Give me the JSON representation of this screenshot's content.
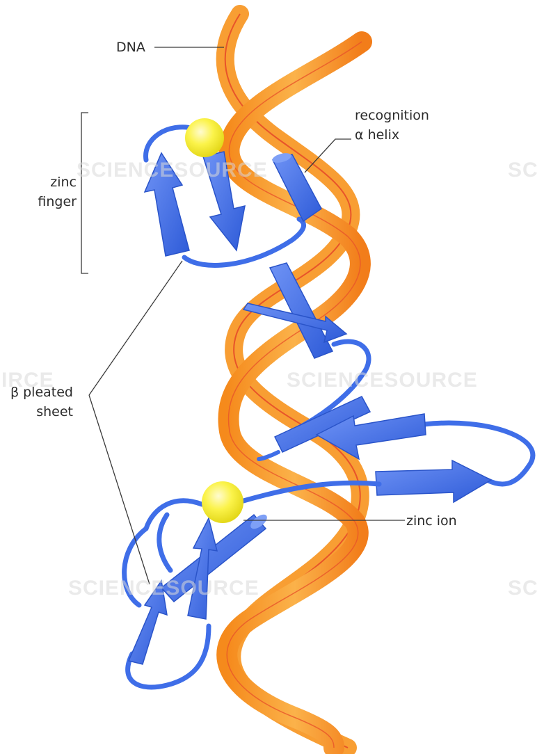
{
  "labels": {
    "dna": "DNA",
    "recognition_line1": "recognition",
    "recognition_line2": "α helix",
    "zinc_finger_line1": "zinc",
    "zinc_finger_line2": "finger",
    "beta_line1": "β pleated",
    "beta_line2": "sheet",
    "zinc_ion": "zinc ion"
  },
  "watermarks": {
    "a": "SCIENCESOURCE",
    "b": "SC",
    "c": "SCIENCESOURCE",
    "d": "IRCE",
    "e": "SCIENCESOURCE",
    "f": "SC"
  },
  "colors": {
    "dna_ribbon": "#f7941d",
    "dna_edge": "#e8542a",
    "protein": "#3f6ee8",
    "protein_dark": "#2a54c9",
    "zinc_ion": "#f7ee3a",
    "leader_line": "#3a3a3a"
  }
}
